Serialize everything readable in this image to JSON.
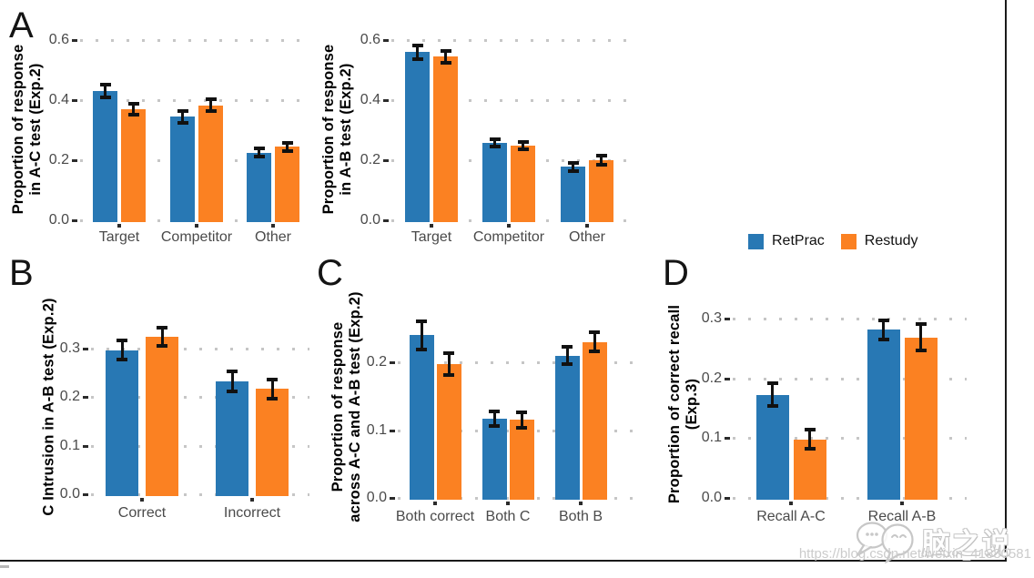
{
  "legend": {
    "items": [
      {
        "label": "RetPrac",
        "color": "#2878B4"
      },
      {
        "label": "Restudy",
        "color": "#FB8122"
      }
    ]
  },
  "watermark": {
    "logo": "wechat-chat-bubbles-icon",
    "brand_text": "脑之说",
    "url_text": "https://blog.csdn.net/weixin_41880581"
  },
  "chart_data": [
    {
      "id": "A1",
      "type": "bar",
      "panel_label": "A",
      "ylabel": "Proportion of response\nin A-C test (Exp.2)",
      "xlabel": "",
      "categories": [
        "Target",
        "Competitor",
        "Other"
      ],
      "yticks": [
        0.0,
        0.2,
        0.4,
        0.6
      ],
      "ylim": [
        0,
        0.61
      ],
      "grid": "dotted",
      "series": [
        {
          "name": "RetPrac",
          "color": "#2878B4",
          "values": [
            0.43,
            0.345,
            0.225
          ],
          "errors": [
            0.021,
            0.019,
            0.014
          ]
        },
        {
          "name": "Restudy",
          "color": "#FB8122",
          "values": [
            0.37,
            0.383,
            0.245
          ],
          "errors": [
            0.019,
            0.02,
            0.014
          ]
        }
      ]
    },
    {
      "id": "A2",
      "type": "bar",
      "panel_label": "",
      "ylabel": "Proportion of response\nin A-B test (Exp.2)",
      "xlabel": "",
      "categories": [
        "Target",
        "Competitor",
        "Other"
      ],
      "yticks": [
        0.0,
        0.2,
        0.4,
        0.6
      ],
      "ylim": [
        0,
        0.61
      ],
      "grid": "dotted",
      "series": [
        {
          "name": "RetPrac",
          "color": "#2878B4",
          "values": [
            0.56,
            0.257,
            0.178
          ],
          "errors": [
            0.023,
            0.012,
            0.014
          ]
        },
        {
          "name": "Restudy",
          "color": "#FB8122",
          "values": [
            0.545,
            0.248,
            0.2
          ],
          "errors": [
            0.02,
            0.012,
            0.015
          ]
        }
      ]
    },
    {
      "id": "B",
      "type": "bar",
      "panel_label": "B",
      "ylabel": "C Intrusion in A-B test (Exp.2)",
      "xlabel": "",
      "categories": [
        "Correct",
        "Incorrect"
      ],
      "yticks": [
        0.0,
        0.1,
        0.2,
        0.3
      ],
      "ylim": [
        0,
        0.36
      ],
      "grid": "dotted",
      "series": [
        {
          "name": "RetPrac",
          "color": "#2878B4",
          "values": [
            0.297,
            0.233
          ],
          "errors": [
            0.019,
            0.021
          ]
        },
        {
          "name": "Restudy",
          "color": "#FB8122",
          "values": [
            0.325,
            0.217
          ],
          "errors": [
            0.019,
            0.02
          ]
        }
      ]
    },
    {
      "id": "C",
      "type": "bar",
      "panel_label": "C",
      "ylabel": "Proportion of response\nacross A-C and A-B test (Exp.2)",
      "xlabel": "",
      "categories": [
        "Both correct",
        "Both C",
        "Both B"
      ],
      "yticks": [
        0.0,
        0.1,
        0.2
      ],
      "ylim": [
        0,
        0.27
      ],
      "grid": "dotted",
      "series": [
        {
          "name": "RetPrac",
          "color": "#2878B4",
          "values": [
            0.24,
            0.117,
            0.21
          ],
          "errors": [
            0.021,
            0.011,
            0.013
          ]
        },
        {
          "name": "Restudy",
          "color": "#FB8122",
          "values": [
            0.198,
            0.115,
            0.23
          ],
          "errors": [
            0.016,
            0.011,
            0.014
          ]
        }
      ]
    },
    {
      "id": "D",
      "type": "bar",
      "panel_label": "D",
      "ylabel": "Proportion of correct recall (Exp.3)",
      "xlabel": "",
      "categories": [
        "Recall A-C",
        "Recall A-B"
      ],
      "yticks": [
        0.0,
        0.1,
        0.2,
        0.3
      ],
      "ylim": [
        0,
        0.315
      ],
      "grid": "dotted",
      "series": [
        {
          "name": "RetPrac",
          "color": "#2878B4",
          "values": [
            0.172,
            0.281
          ],
          "errors": [
            0.019,
            0.016
          ]
        },
        {
          "name": "Restudy",
          "color": "#FB8122",
          "values": [
            0.098,
            0.268
          ],
          "errors": [
            0.016,
            0.022
          ]
        }
      ]
    }
  ]
}
